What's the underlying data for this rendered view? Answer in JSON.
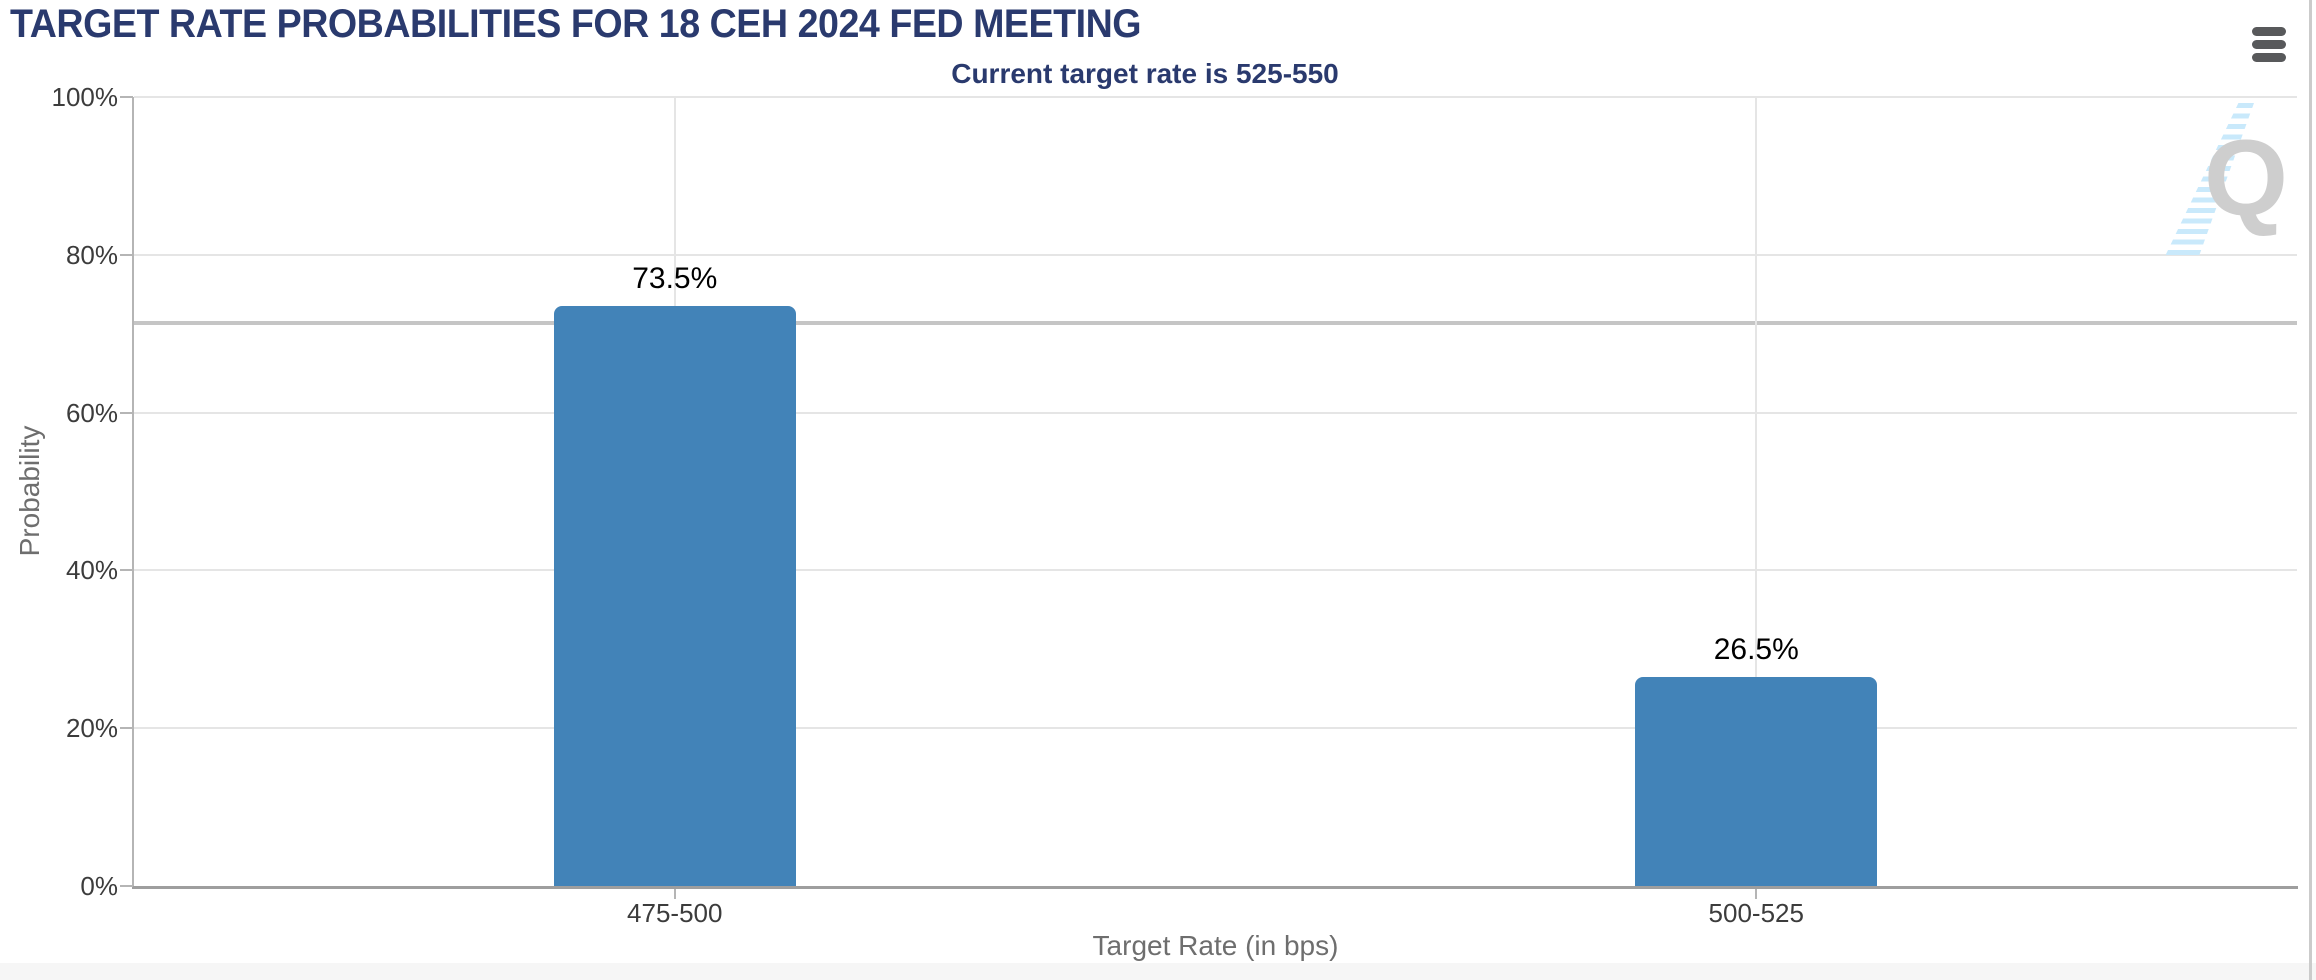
{
  "header": {
    "title": "TARGET RATE PROBABILITIES FOR 18 CEH 2024 FED MEETING",
    "subtitle": "Current target rate is 525-550"
  },
  "watermark": {
    "letter": "Q"
  },
  "chart_data": {
    "type": "bar",
    "title": "TARGET RATE PROBABILITIES FOR 18 CEH 2024 FED MEETING",
    "subtitle": "Current target rate is 525-550",
    "categories": [
      "475-500",
      "500-525"
    ],
    "values": [
      73.5,
      26.5
    ],
    "value_labels": [
      "73.5%",
      "26.5%"
    ],
    "xlabel": "Target Rate (in bps)",
    "ylabel": "Probability",
    "ylim": [
      0,
      100
    ],
    "yticks": [
      0,
      20,
      40,
      60,
      80,
      100
    ],
    "ytick_labels": [
      "0%",
      "20%",
      "40%",
      "60%",
      "80%",
      "100%"
    ],
    "grid": true,
    "legend": "none",
    "bar_color": "#4283b8",
    "marker_line_pct": 71.4
  },
  "colors": {
    "title_navy": "#2a3a6e",
    "bar_blue": "#4283b8",
    "gridline": "#e5e5e5",
    "axis_line": "#b5b5b5",
    "marker_line": "#c5c5c5",
    "tick_label": "#3c3c3c",
    "axis_title_gray": "#6e6e6e",
    "menu_gray": "#58595b",
    "watermark_gray": "#cecece",
    "watermark_blue": "#c9e9fb"
  }
}
